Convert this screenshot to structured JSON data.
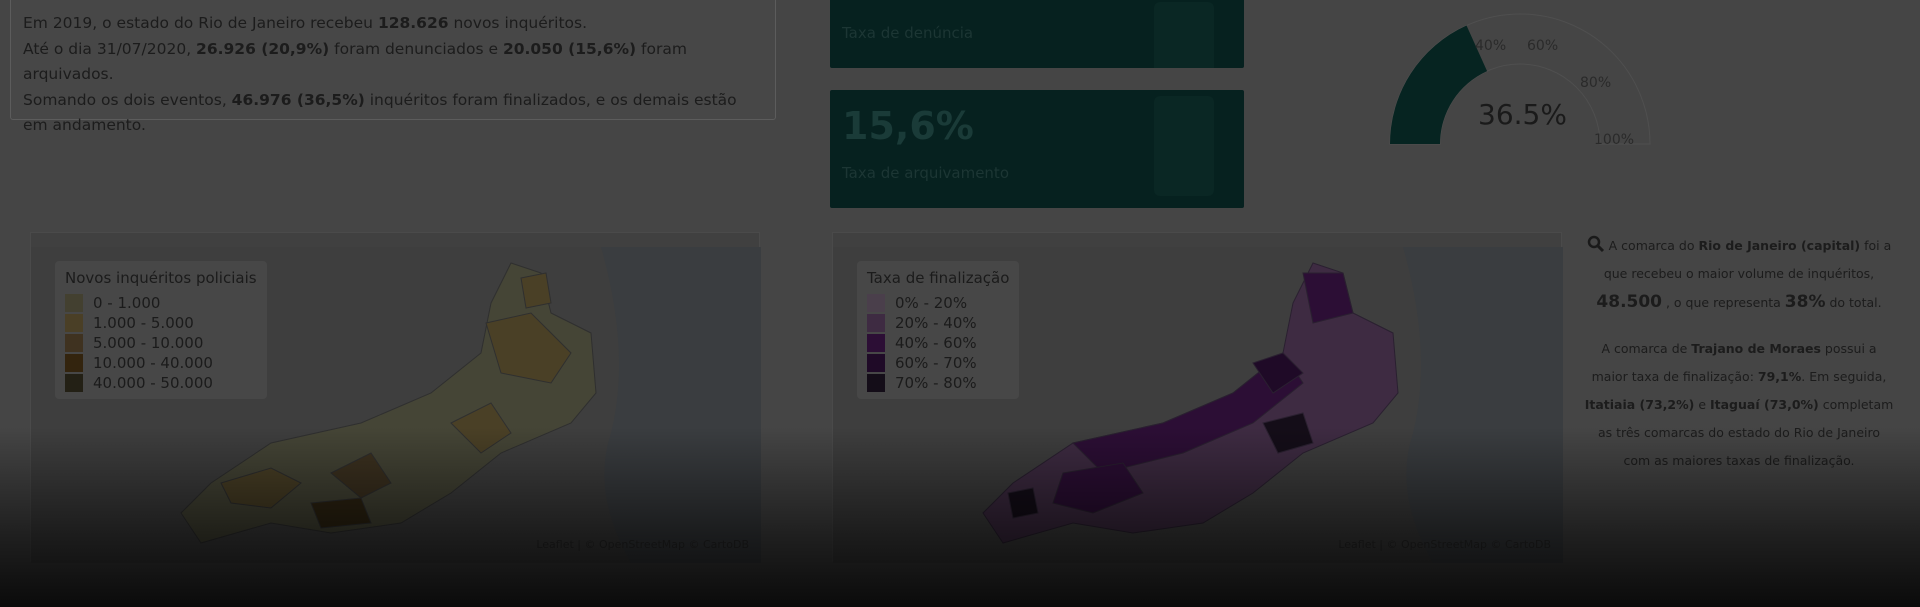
{
  "intro": {
    "l1_pre": "Em 2019, o estado do Rio de Janeiro recebeu ",
    "l1_num": "128.626",
    "l1_post": " novos inquéritos.",
    "l2_pre": "Até o dia 31/07/2020, ",
    "l2_den": "26.926 (20,9%)",
    "l2_mid": " foram denunciados e ",
    "l2_arq": "20.050 (15,6%)",
    "l2_post": " foram arquivados.",
    "l3_pre": "Somando os dois eventos, ",
    "l3_fin": "46.976 (36,5%)",
    "l3_post": " inquéritos foram finalizados, e os demais estão em andamento."
  },
  "kpis": [
    {
      "value": "",
      "label": "Taxa de denúncia"
    },
    {
      "value": "15,6%",
      "label": "Taxa de arquivamento"
    }
  ],
  "gauge": {
    "value": "36.5%",
    "ticks": [
      "40%",
      "60%",
      "80%",
      "100%"
    ],
    "fill_fraction": 0.365
  },
  "map1": {
    "legend_title": "Novos inquéritos policiais",
    "legend": [
      {
        "label": "0 - 1.000",
        "color": "#434030"
      },
      {
        "label": "1.000 - 5.000",
        "color": "#4a3f26"
      },
      {
        "label": "5.000 - 10.000",
        "color": "#3f3220"
      },
      {
        "label": "10.000 - 40.000",
        "color": "#33240e"
      },
      {
        "label": "40.000 - 50.000",
        "color": "#232015"
      }
    ],
    "attribution": "Leaflet | © OpenStreetMap © CartoDB"
  },
  "map2": {
    "legend_title": "Taxa de finalização",
    "legend": [
      {
        "label": "0% - 20%",
        "color": "#4a3f4b"
      },
      {
        "label": "20% - 40%",
        "color": "#3e2b42"
      },
      {
        "label": "40% - 60%",
        "color": "#2c0e35"
      },
      {
        "label": "60% - 70%",
        "color": "#1f0a27"
      },
      {
        "label": "70% - 80%",
        "color": "#140d18"
      }
    ],
    "attribution": "Leaflet | © OpenStreetMap © CartoDB"
  },
  "info": {
    "p1_pre": " A comarca do ",
    "p1_name": "Rio de Janeiro (capital)",
    "p1_mid": " foi a que recebeu o maior volume de inquéritos, ",
    "p1_num": "48.500",
    "p1_mid2": " , o que representa ",
    "p1_pct": "38%",
    "p1_post": " do total.",
    "p2_pre": "A comarca de ",
    "p2_name": "Trajano de Moraes",
    "p2_mid": " possui a maior taxa de finalização: ",
    "p2_val": "79,1%",
    "p2_mid2": ". Em seguida, ",
    "p2_n2": "Itatiaia",
    "p2_v2": " (73,2%)",
    "p2_e": " e ",
    "p2_n3": "Itaguaí",
    "p2_v3": " (73,0%)",
    "p2_post": " completam as três comarcas do estado do Rio de Janeiro com as maiores taxas de finalização."
  },
  "colors": {
    "card": "#06211f",
    "gauge_fill": "#062421"
  }
}
